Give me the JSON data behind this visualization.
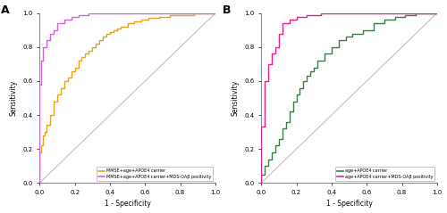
{
  "panel_A": {
    "curve1": {
      "label": "MMSE+age+APOE4 carrier",
      "color": "#E8A020",
      "x": [
        0.0,
        0.0,
        0.01,
        0.01,
        0.02,
        0.02,
        0.03,
        0.03,
        0.04,
        0.04,
        0.06,
        0.06,
        0.08,
        0.08,
        0.1,
        0.1,
        0.12,
        0.12,
        0.14,
        0.14,
        0.16,
        0.16,
        0.18,
        0.18,
        0.2,
        0.2,
        0.22,
        0.22,
        0.24,
        0.24,
        0.26,
        0.26,
        0.28,
        0.28,
        0.3,
        0.3,
        0.32,
        0.32,
        0.34,
        0.34,
        0.36,
        0.36,
        0.38,
        0.38,
        0.4,
        0.4,
        0.42,
        0.42,
        0.44,
        0.44,
        0.46,
        0.46,
        0.5,
        0.5,
        0.54,
        0.54,
        0.58,
        0.58,
        0.62,
        0.62,
        0.68,
        0.68,
        0.74,
        0.74,
        0.8,
        0.8,
        0.88,
        0.88,
        0.94,
        0.94,
        1.0
      ],
      "y": [
        0.0,
        0.18,
        0.18,
        0.22,
        0.22,
        0.28,
        0.28,
        0.3,
        0.3,
        0.34,
        0.34,
        0.4,
        0.4,
        0.48,
        0.48,
        0.52,
        0.52,
        0.56,
        0.56,
        0.6,
        0.6,
        0.62,
        0.62,
        0.66,
        0.66,
        0.68,
        0.68,
        0.72,
        0.72,
        0.74,
        0.74,
        0.76,
        0.76,
        0.78,
        0.78,
        0.8,
        0.8,
        0.82,
        0.82,
        0.84,
        0.84,
        0.86,
        0.86,
        0.88,
        0.88,
        0.89,
        0.89,
        0.9,
        0.9,
        0.91,
        0.91,
        0.92,
        0.92,
        0.94,
        0.94,
        0.95,
        0.95,
        0.96,
        0.96,
        0.97,
        0.97,
        0.98,
        0.98,
        0.99,
        0.99,
        0.99,
        0.99,
        1.0,
        1.0,
        1.0,
        1.0
      ]
    },
    "curve2": {
      "label": "MMSE+age+APOE4 carrier+MDS-OAβ positivity",
      "color": "#CC66CC",
      "x": [
        0.0,
        0.0,
        0.01,
        0.01,
        0.02,
        0.02,
        0.04,
        0.04,
        0.06,
        0.06,
        0.08,
        0.08,
        0.1,
        0.1,
        0.14,
        0.14,
        0.18,
        0.18,
        0.22,
        0.22,
        0.28,
        0.28,
        0.36,
        0.36,
        0.46,
        0.46,
        0.56,
        0.56,
        0.68,
        0.68,
        0.8,
        0.8,
        1.0
      ],
      "y": [
        0.0,
        0.58,
        0.58,
        0.72,
        0.72,
        0.8,
        0.8,
        0.84,
        0.84,
        0.88,
        0.88,
        0.9,
        0.9,
        0.94,
        0.94,
        0.96,
        0.96,
        0.98,
        0.98,
        0.99,
        0.99,
        1.0,
        1.0,
        1.0,
        1.0,
        1.0,
        1.0,
        1.0,
        1.0,
        1.0,
        1.0,
        1.0,
        1.0
      ]
    }
  },
  "panel_B": {
    "curve1": {
      "label": "age+APOE4 carrier",
      "color": "#3A7D44",
      "x": [
        0.0,
        0.0,
        0.02,
        0.02,
        0.04,
        0.04,
        0.06,
        0.06,
        0.08,
        0.08,
        0.1,
        0.1,
        0.12,
        0.12,
        0.14,
        0.14,
        0.16,
        0.16,
        0.18,
        0.18,
        0.2,
        0.2,
        0.22,
        0.22,
        0.24,
        0.24,
        0.26,
        0.26,
        0.28,
        0.28,
        0.3,
        0.3,
        0.32,
        0.32,
        0.36,
        0.36,
        0.4,
        0.4,
        0.44,
        0.44,
        0.48,
        0.48,
        0.52,
        0.52,
        0.58,
        0.58,
        0.64,
        0.64,
        0.7,
        0.7,
        0.76,
        0.76,
        0.82,
        0.82,
        0.88,
        0.88,
        0.94,
        0.94,
        1.0
      ],
      "y": [
        0.0,
        0.05,
        0.05,
        0.1,
        0.1,
        0.14,
        0.14,
        0.18,
        0.18,
        0.22,
        0.22,
        0.26,
        0.26,
        0.32,
        0.32,
        0.36,
        0.36,
        0.42,
        0.42,
        0.48,
        0.48,
        0.52,
        0.52,
        0.56,
        0.56,
        0.6,
        0.6,
        0.63,
        0.63,
        0.66,
        0.66,
        0.68,
        0.68,
        0.72,
        0.72,
        0.76,
        0.76,
        0.8,
        0.8,
        0.84,
        0.84,
        0.86,
        0.86,
        0.88,
        0.88,
        0.9,
        0.9,
        0.94,
        0.94,
        0.96,
        0.96,
        0.98,
        0.98,
        0.99,
        0.99,
        1.0,
        1.0,
        1.0,
        1.0
      ]
    },
    "curve2": {
      "label": "age+APOE4 carrier+MDS-OAβ positivity",
      "color": "#E8208C",
      "x": [
        0.0,
        0.0,
        0.02,
        0.02,
        0.04,
        0.04,
        0.06,
        0.06,
        0.08,
        0.08,
        0.1,
        0.1,
        0.12,
        0.12,
        0.16,
        0.16,
        0.2,
        0.2,
        0.26,
        0.26,
        0.34,
        0.34,
        0.44,
        0.44,
        0.56,
        0.56,
        0.7,
        0.7,
        0.84,
        0.84,
        1.0
      ],
      "y": [
        0.0,
        0.33,
        0.33,
        0.6,
        0.6,
        0.7,
        0.7,
        0.76,
        0.76,
        0.8,
        0.8,
        0.88,
        0.88,
        0.94,
        0.94,
        0.96,
        0.96,
        0.98,
        0.98,
        0.99,
        0.99,
        1.0,
        1.0,
        1.0,
        1.0,
        1.0,
        1.0,
        1.0,
        1.0,
        1.0,
        1.0
      ]
    }
  },
  "diagonal": [
    0.0,
    1.0
  ],
  "xlabel": "1 - Specificity",
  "ylabel": "Sensitivity",
  "xlim": [
    0.0,
    1.0
  ],
  "ylim": [
    0.0,
    1.0
  ],
  "xticks": [
    0.0,
    0.2,
    0.4,
    0.6,
    0.8,
    1.0
  ],
  "yticks": [
    0.0,
    0.2,
    0.4,
    0.6,
    0.8,
    1.0
  ],
  "tick_labels": [
    "0.0",
    "0.2",
    "0.4",
    "0.6",
    "0.8",
    "1.0"
  ],
  "bg_color": "#FFFFFF",
  "line_width": 1.0,
  "label_A": "A",
  "label_B": "B",
  "fig_width": 5.0,
  "fig_height": 2.39,
  "dpi": 100
}
